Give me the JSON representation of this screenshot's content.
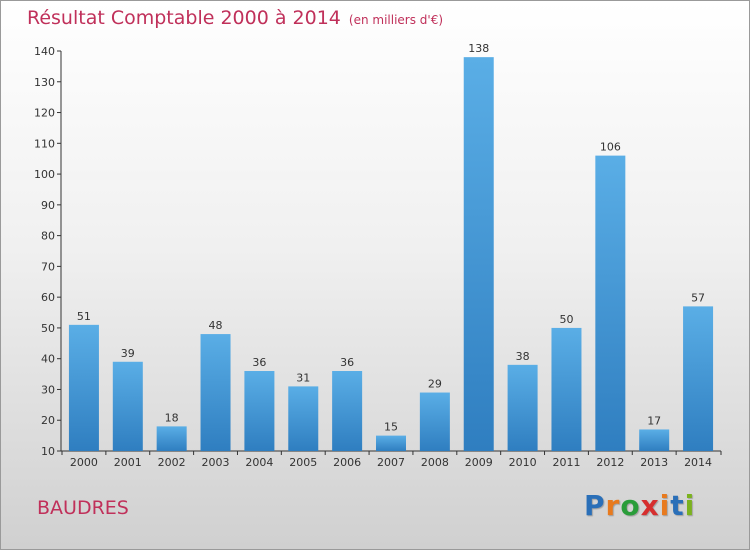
{
  "title": "Résultat Comptable 2000 à 2014",
  "subtitle": "(en milliers d'€)",
  "commune": "BAUDRES",
  "logo": {
    "text": "Proxiti",
    "letters": [
      "P",
      "r",
      "o",
      "x",
      "i",
      "t",
      "i"
    ],
    "colors": [
      "#2a6fb8",
      "#e87a1e",
      "#2a9d3a",
      "#d62e2e",
      "#e87a1e",
      "#2a6fb8",
      "#7bb21e"
    ]
  },
  "colors": {
    "title": "#c0305a",
    "bar_light": "#5aaee6",
    "bar_dark": "#2f7ec0",
    "axis": "#333333"
  },
  "chart_data": {
    "type": "bar",
    "categories": [
      "2000",
      "2001",
      "2002",
      "2003",
      "2004",
      "2005",
      "2006",
      "2007",
      "2008",
      "2009",
      "2010",
      "2011",
      "2012",
      "2013",
      "2014"
    ],
    "values": [
      51,
      39,
      18,
      48,
      36,
      31,
      36,
      15,
      29,
      138,
      38,
      50,
      106,
      17,
      57
    ],
    "ylim": [
      10,
      140
    ],
    "yticks": [
      10,
      20,
      30,
      40,
      50,
      60,
      70,
      80,
      90,
      100,
      110,
      120,
      130,
      140
    ],
    "grid": false
  }
}
